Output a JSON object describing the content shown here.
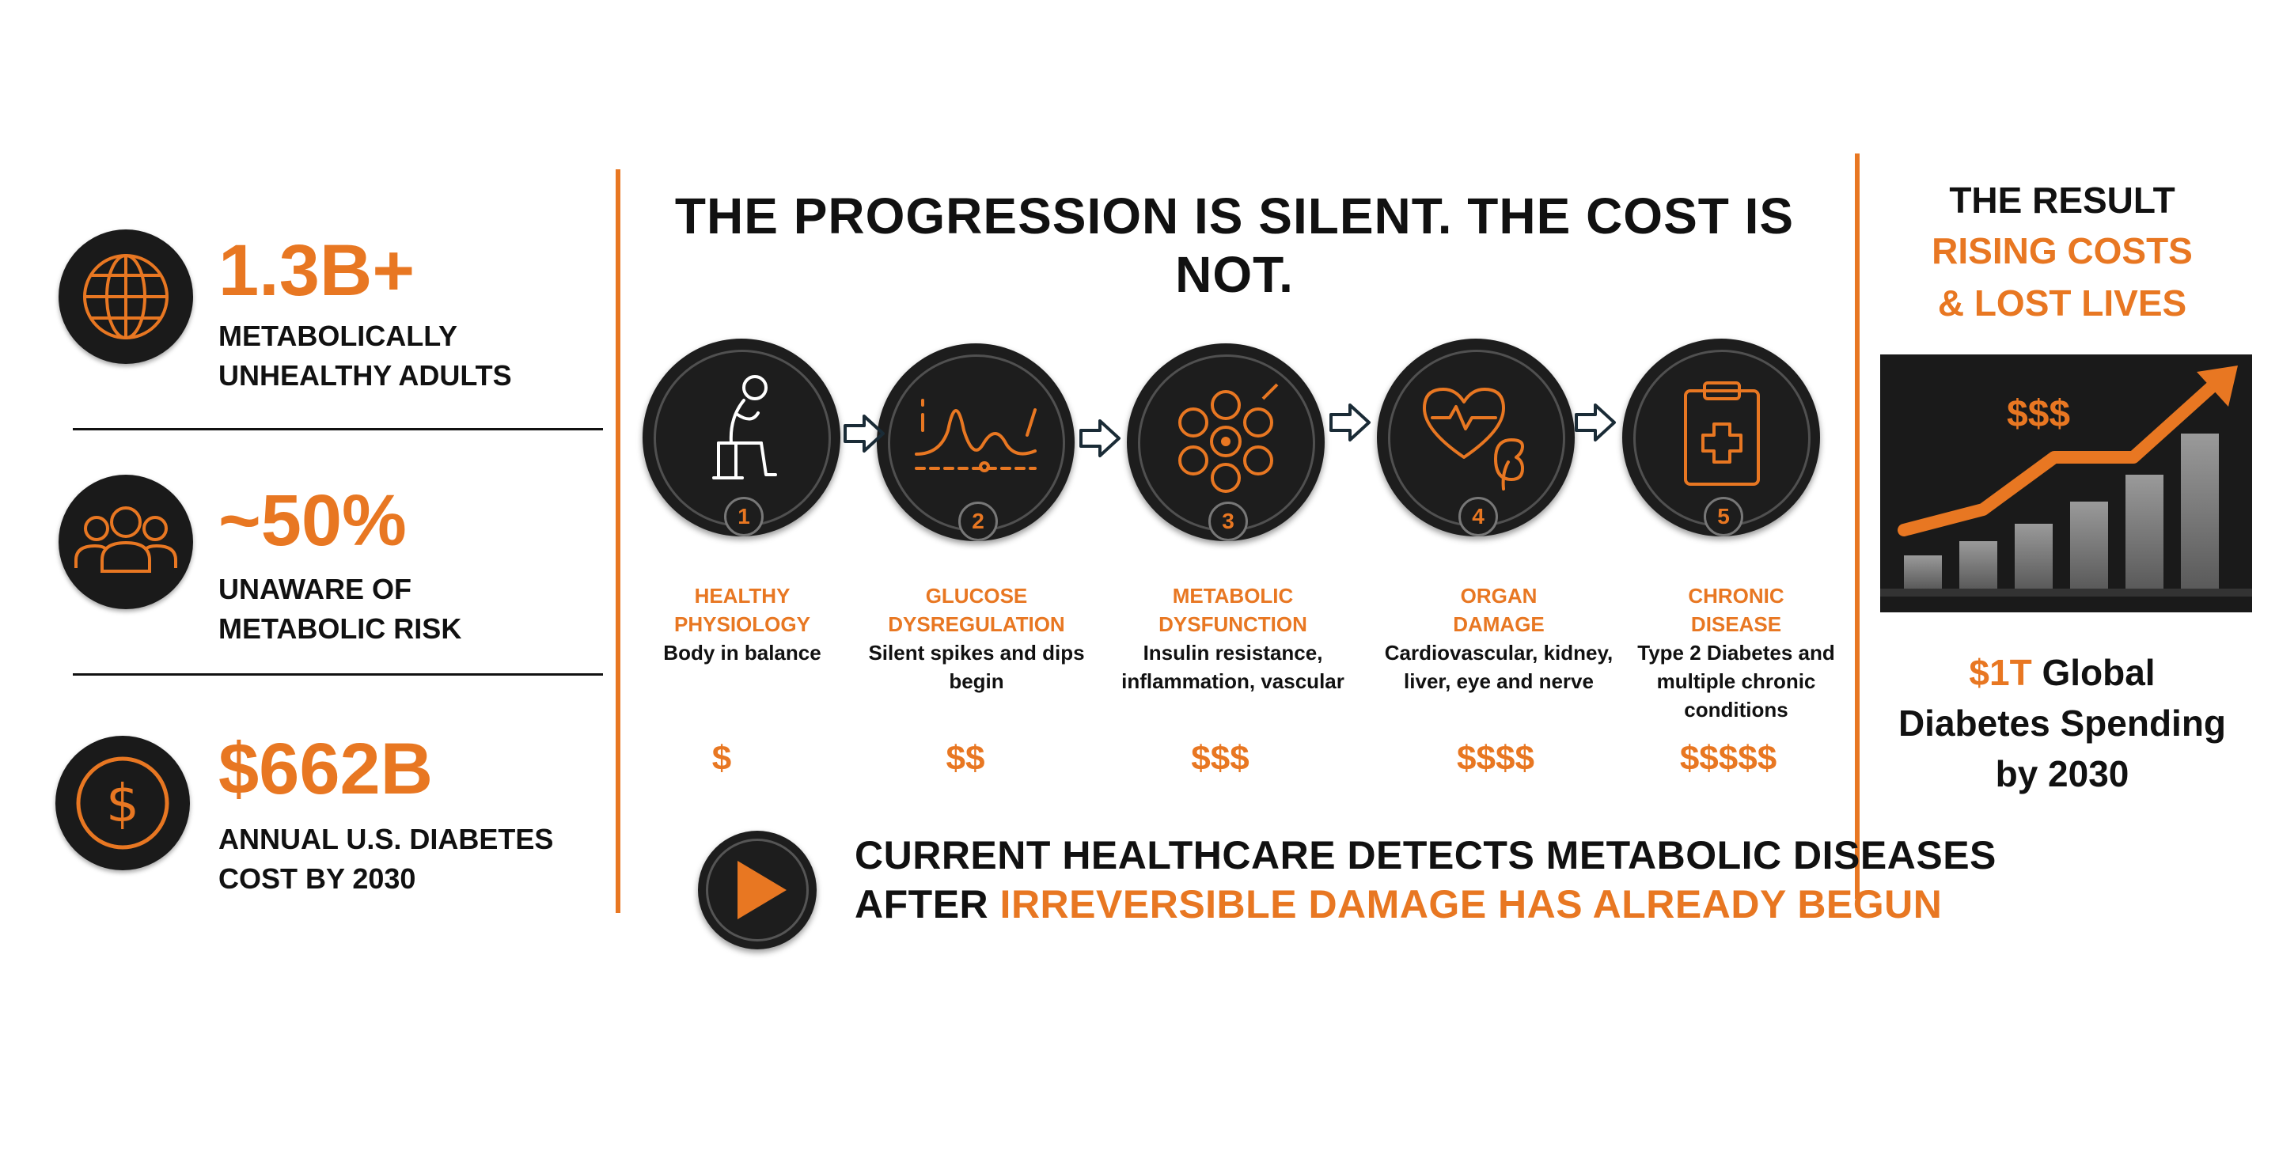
{
  "stats": [
    {
      "value": "1.3B+",
      "label_line1": "METABOLICALLY",
      "label_line2": "UNHEALTHY ADULTS",
      "icon": "globe-icon"
    },
    {
      "value": "~50%",
      "label_line1": "UNAWARE OF",
      "label_line2": "METABOLIC RISK",
      "icon": "people-icon"
    },
    {
      "value": "$662B",
      "label_line1": "ANNUAL U.S. DIABETES",
      "label_line2": "COST BY 2030",
      "icon": "dollar-icon"
    }
  ],
  "title": "THE PROGRESSION IS SILENT. THE COST IS NOT.",
  "steps": [
    {
      "num": "1",
      "title1": "HEALTHY",
      "title2": "PHYSIOLOGY",
      "desc1": "Body in balance",
      "desc2": "",
      "desc3": "",
      "cost": "$",
      "icon": "seated-person-icon"
    },
    {
      "num": "2",
      "title1": "GLUCOSE",
      "title2": "DYSREGULATION",
      "desc1": "Silent spikes and dips",
      "desc2": "begin",
      "desc3": "",
      "cost": "$$",
      "icon": "glucose-wave-icon"
    },
    {
      "num": "3",
      "title1": "METABOLIC",
      "title2": "DYSFUNCTION",
      "desc1": "Insulin resistance,",
      "desc2": "inflammation, vascular",
      "desc3": "",
      "cost": "$$$",
      "icon": "cell-cluster-icon"
    },
    {
      "num": "4",
      "title1": "ORGAN",
      "title2": "DAMAGE",
      "desc1": "Cardiovascular, kidney,",
      "desc2": "liver, eye and nerve",
      "desc3": "",
      "cost": "$$$$",
      "icon": "heart-kidney-icon"
    },
    {
      "num": "5",
      "title1": "CHRONIC",
      "title2": "DISEASE",
      "desc1": "Type 2 Diabetes and",
      "desc2": "multiple chronic",
      "desc3": "conditions",
      "cost": "$$$$$",
      "icon": "clipboard-medical-icon"
    }
  ],
  "callout": {
    "line1": "CURRENT HEALTHCARE DETECTS METABOLIC DISEASES",
    "line2_prefix": "AFTER ",
    "line2_highlight": "IRREVERSIBLE DAMAGE HAS ALREADY BEGUN",
    "icon": "play-icon"
  },
  "result": {
    "title": "THE RESULT",
    "subtitle1": "RISING COSTS",
    "subtitle2": "& LOST LIVES",
    "chart_label": "$$$",
    "chart_icon": "rising-bars-arrow-icon",
    "spend_highlight": "$1T",
    "spend_line1_rest": " Global",
    "spend_line2": "Diabetes Spending",
    "spend_line3": "by 2030"
  },
  "colors": {
    "accent": "#e87722",
    "dark": "#1d1d1d",
    "text": "#111111"
  }
}
